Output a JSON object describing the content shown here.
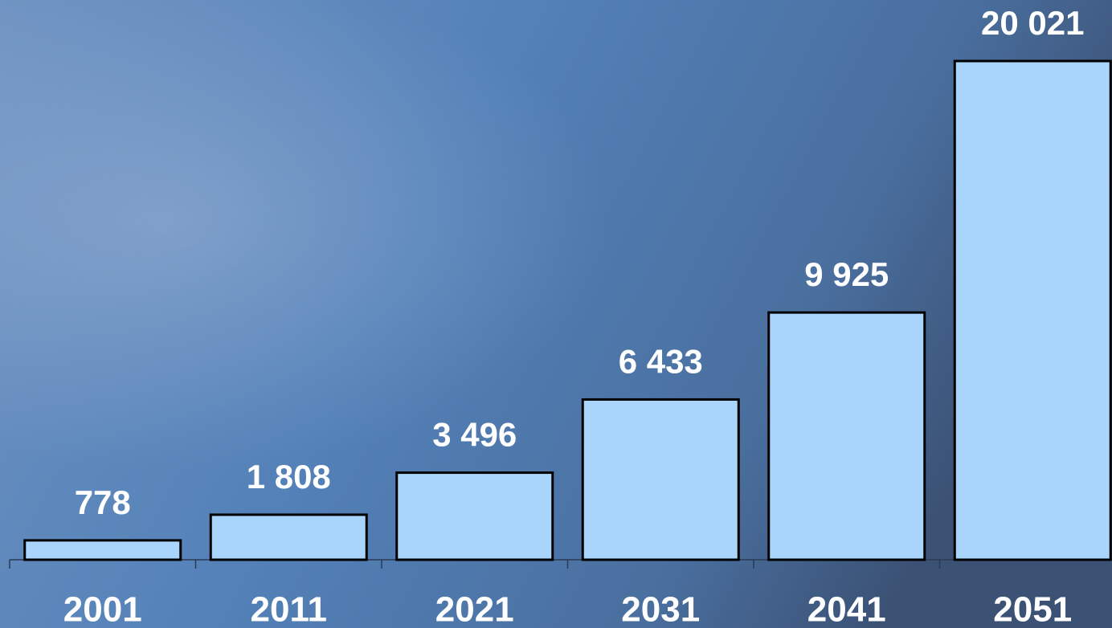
{
  "chart_data": {
    "type": "bar",
    "categories": [
      "2001",
      "2011",
      "2021",
      "2031",
      "2041",
      "2051"
    ],
    "values": [
      778,
      1808,
      3496,
      6433,
      9925,
      20021
    ],
    "value_labels": [
      "778",
      "1 808",
      "3 496",
      "6 433",
      "9 925",
      "20 021"
    ],
    "color": "#a9d4fb"
  }
}
